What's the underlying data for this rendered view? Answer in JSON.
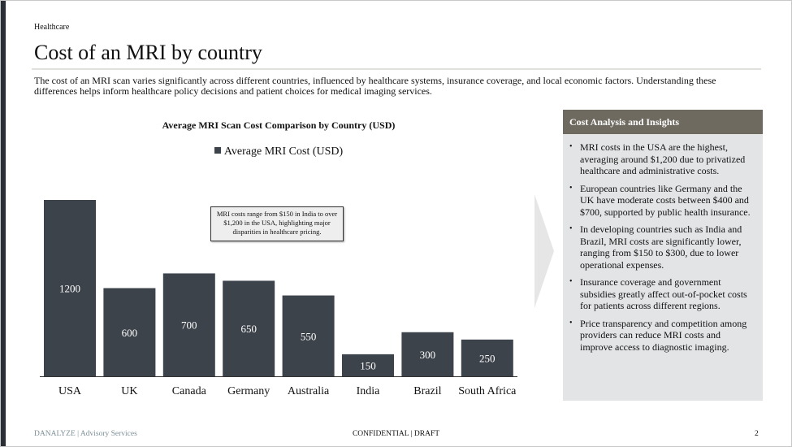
{
  "header": {
    "section": "Healthcare",
    "title": "Cost of an MRI by country",
    "intro": "The cost of an MRI scan varies significantly across different countries, influenced by healthcare systems, insurance coverage, and local economic factors. Understanding these differences helps inform healthcare policy decisions and patient choices for medical imaging services."
  },
  "chart_data": {
    "type": "bar",
    "title": "Average MRI Scan Cost Comparison by Country (USD)",
    "legend": [
      "Average MRI Cost (USD)"
    ],
    "legend_position": "top",
    "categories": [
      "USA",
      "UK",
      "Canada",
      "Germany",
      "Australia",
      "India",
      "Brazil",
      "South Africa"
    ],
    "values": [
      1200,
      600,
      700,
      650,
      550,
      150,
      300,
      250
    ],
    "ylim": [
      0,
      1200
    ],
    "grid": false,
    "bar_color": "#3d434b",
    "annotation": "MRI costs range from $150 in India to over $1,200 in the USA, highlighting major disparities in healthcare pricing."
  },
  "panel": {
    "title": "Cost Analysis and Insights",
    "items": [
      "MRI costs in the USA are the highest, averaging around $1,200 due to privatized healthcare and administrative costs.",
      "European countries like Germany and the UK have moderate costs between $400 and $700, supported by public health insurance.",
      "In developing countries such as India and Brazil, MRI costs are significantly lower, ranging from $150 to $300, due to lower operational expenses.",
      "Insurance coverage and government subsidies greatly affect out-of-pocket costs for patients across different regions.",
      "Price transparency and competition among providers can reduce MRI costs and improve access to diagnostic imaging."
    ]
  },
  "footer": {
    "brand": "DANALYZE | Advisory Services",
    "status": "CONFIDENTIAL | DRAFT",
    "page": "2"
  }
}
